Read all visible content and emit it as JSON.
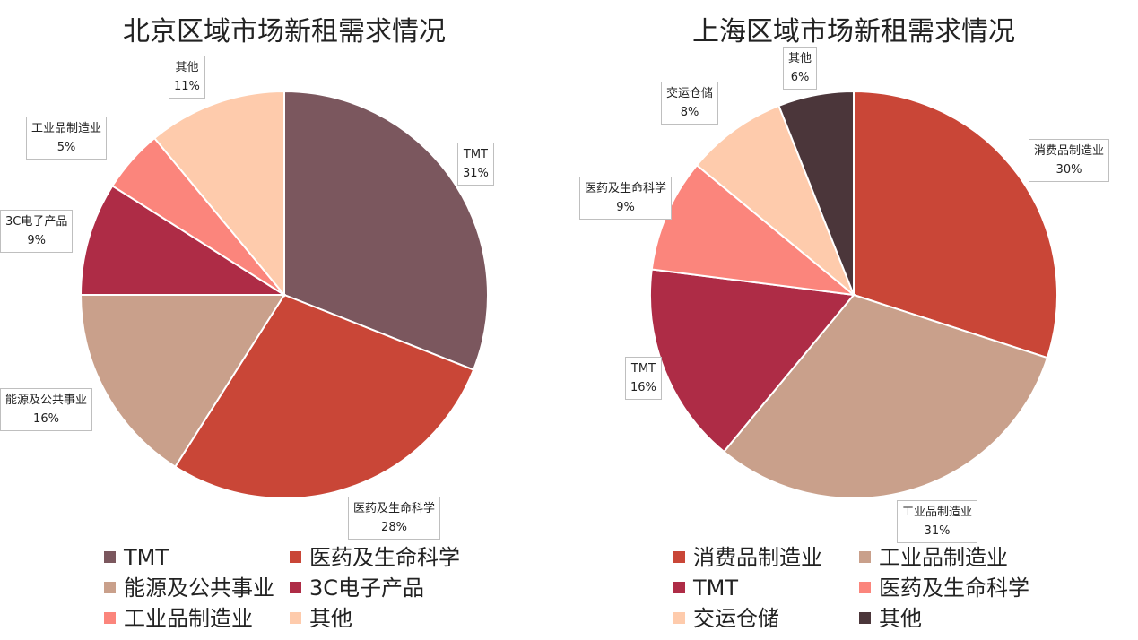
{
  "chart_data": [
    {
      "type": "pie",
      "title": "北京区域市场新租需求情况",
      "slices": [
        {
          "label": "TMT",
          "value": 31,
          "value_label": "31%",
          "color": "#7b575e"
        },
        {
          "label": "医药及生命科学",
          "value": 28,
          "value_label": "28%",
          "color": "#c94637"
        },
        {
          "label": "能源及公共事业",
          "value": 16,
          "value_label": "16%",
          "color": "#c9a08b"
        },
        {
          "label": "3C电子产品",
          "value": 9,
          "value_label": "9%",
          "color": "#ae2c46"
        },
        {
          "label": "工业品制造业",
          "value": 5,
          "value_label": "5%",
          "color": "#fb857c"
        },
        {
          "label": "其他",
          "value": 11,
          "value_label": "11%",
          "color": "#fecbac"
        }
      ],
      "legend": [
        "TMT",
        "医药及生命科学",
        "能源及公共事业",
        "3C电子产品",
        "工业品制造业",
        "其他"
      ],
      "legend_position": "bottom"
    },
    {
      "type": "pie",
      "title": "上海区域市场新租需求情况",
      "slices": [
        {
          "label": "消费品制造业",
          "value": 30,
          "value_label": "30%",
          "color": "#c94637"
        },
        {
          "label": "工业品制造业",
          "value": 31,
          "value_label": "31%",
          "color": "#c9a08b"
        },
        {
          "label": "TMT",
          "value": 16,
          "value_label": "16%",
          "color": "#ae2c46"
        },
        {
          "label": "医药及生命科学",
          "value": 9,
          "value_label": "9%",
          "color": "#fb857c"
        },
        {
          "label": "交运仓储",
          "value": 8,
          "value_label": "8%",
          "color": "#fecbac"
        },
        {
          "label": "其他",
          "value": 6,
          "value_label": "6%",
          "color": "#4b363a"
        }
      ],
      "legend": [
        "消费品制造业",
        "工业品制造业",
        "TMT",
        "医药及生命科学",
        "交运仓储",
        "其他"
      ],
      "legend_position": "bottom"
    }
  ]
}
